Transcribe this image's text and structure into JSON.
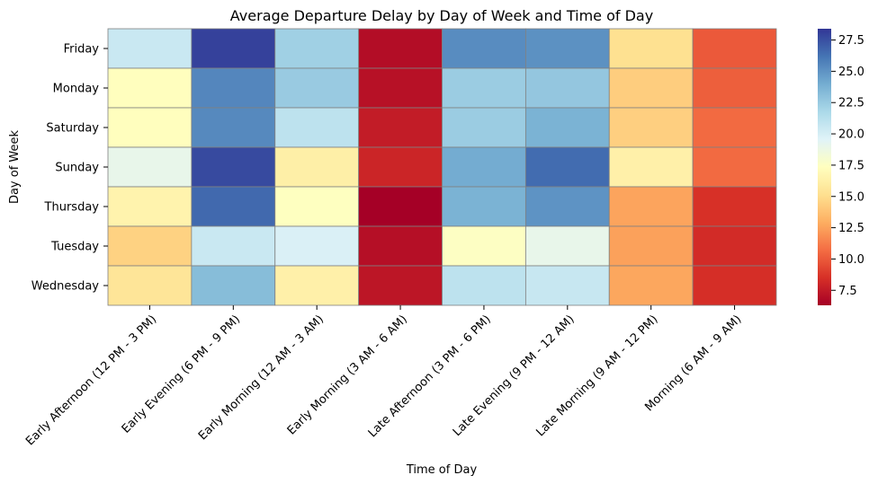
{
  "chart_data": {
    "type": "heatmap",
    "title": "Average Departure Delay by Day of Week and Time of Day",
    "xlabel": "Time of Day",
    "ylabel": "Day of Week",
    "x_categories": [
      "Early Afternoon (12 PM - 3 PM)",
      "Early Evening (6 PM - 9 PM)",
      "Early Morning (12 AM - 3 AM)",
      "Early Morning (3 AM - 6 AM)",
      "Late Afternoon (3 PM - 6 PM)",
      "Late Evening (9 PM - 12 AM)",
      "Late Morning (9 AM - 12 PM)",
      "Morning (6 AM - 9 AM)"
    ],
    "y_categories": [
      "Friday",
      "Monday",
      "Saturday",
      "Sunday",
      "Thursday",
      "Tuesday",
      "Wednesday"
    ],
    "values": [
      [
        20.5,
        28.0,
        22.2,
        6.9,
        25.3,
        25.1,
        15.2,
        10.0
      ],
      [
        17.3,
        25.5,
        22.5,
        7.1,
        22.4,
        22.7,
        14.3,
        10.2
      ],
      [
        17.3,
        25.4,
        21.0,
        7.6,
        22.4,
        23.7,
        14.4,
        10.6
      ],
      [
        19.0,
        27.7,
        16.2,
        8.0,
        24.0,
        26.5,
        16.3,
        10.6
      ],
      [
        16.5,
        26.6,
        17.4,
        6.3,
        23.7,
        25.0,
        12.6,
        8.5
      ],
      [
        14.5,
        20.5,
        19.8,
        7.0,
        17.5,
        19.0,
        12.5,
        8.3
      ],
      [
        15.5,
        23.2,
        16.3,
        7.3,
        21.0,
        20.6,
        12.7,
        8.4
      ]
    ],
    "colorbar": {
      "vmin": 6.3,
      "vmax": 28.4,
      "ticks": [
        "7.5",
        "10.0",
        "12.5",
        "15.0",
        "17.5",
        "20.0",
        "22.5",
        "25.0",
        "27.5"
      ],
      "colormap": "RdYlBu",
      "colormap_colors": [
        "#a50026",
        "#d73027",
        "#f46d43",
        "#fdae61",
        "#fee090",
        "#ffffbf",
        "#e0f3f8",
        "#abd9e9",
        "#74add1",
        "#4575b4",
        "#313695"
      ]
    },
    "grid_line_color": "#808080",
    "grid": true,
    "legend": "colorbar-right"
  }
}
